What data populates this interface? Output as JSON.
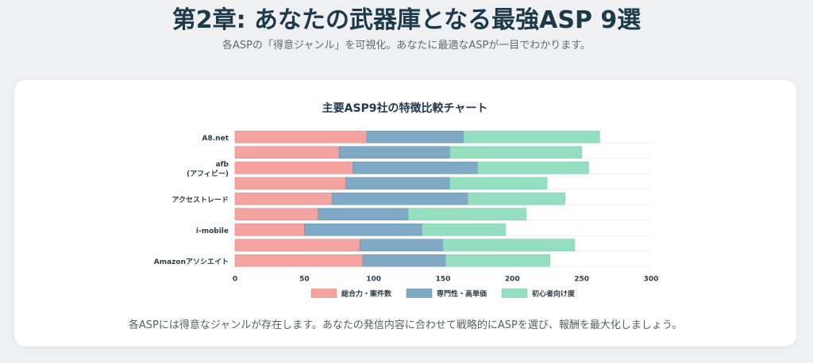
{
  "header": {
    "title": "第2章: あなたの武器庫となる最強ASP 9選",
    "subtitle": "各ASPの「得意ジャンル」を可視化。あなたに最適なASPが一目でわかります。"
  },
  "footer": {
    "text": "各ASPには得意なジャンルが存在します。あなたの発信内容に合わせて戦略的にASPを選び、報酬を最大化しましょう。"
  },
  "colors": {
    "series_0": "#f4a3a0",
    "series_1": "#7fa9c4",
    "series_2": "#93dfbf",
    "stroke_0": "#e88f8b",
    "stroke_1": "#6a95b1",
    "stroke_2": "#7fd0ae"
  },
  "chart_data": {
    "type": "bar",
    "orientation": "horizontal",
    "stacked": true,
    "title": "主要ASP9社の特徴比較チャート",
    "categories": [
      "A8.net",
      "",
      "afb\n(アフィビー)",
      "",
      "アクセストレード",
      "",
      "i-mobile",
      "",
      "Amazonアソシエイト"
    ],
    "series": [
      {
        "name": "総合力・案件数",
        "values": [
          95,
          75,
          85,
          80,
          70,
          60,
          50,
          90,
          92
        ]
      },
      {
        "name": "専門性・高単価",
        "values": [
          70,
          80,
          90,
          75,
          98,
          65,
          85,
          60,
          60
        ]
      },
      {
        "name": "初心者向け度",
        "values": [
          98,
          95,
          80,
          70,
          70,
          85,
          60,
          95,
          75
        ]
      }
    ],
    "xlim": [
      0,
      300
    ],
    "xticks": [
      "0",
      "50",
      "100",
      "150",
      "200",
      "250",
      "300"
    ],
    "grid": true,
    "legend_position": "bottom"
  }
}
